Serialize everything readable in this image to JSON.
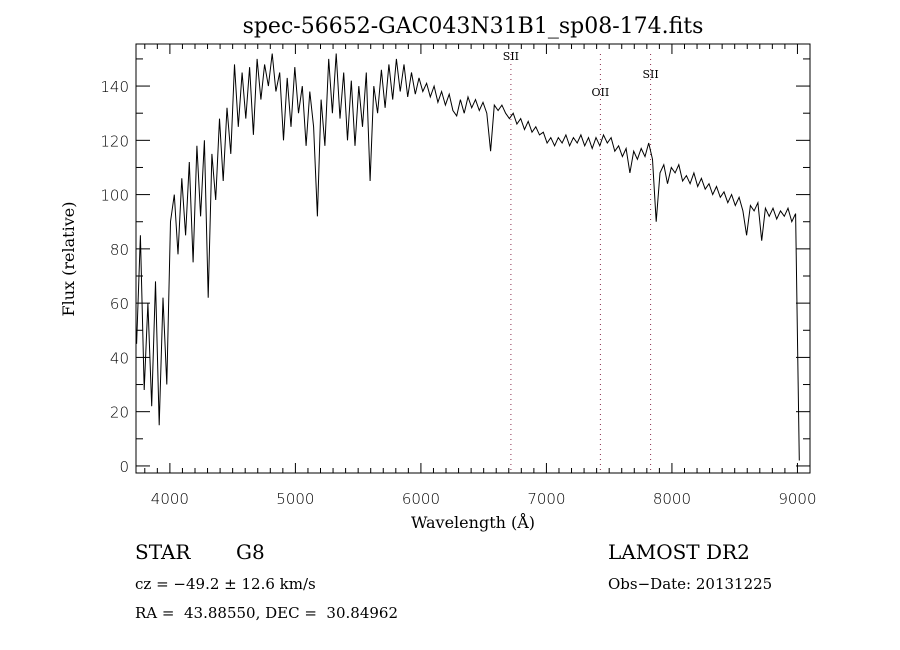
{
  "chart_data": {
    "type": "line",
    "title": "spec-56652-GAC043N31B1_sp08-174.fits",
    "xlabel": "Wavelength (Å)",
    "ylabel": "Flux (relative)",
    "xlim": [
      3730,
      9100
    ],
    "ylim": [
      -2.6,
      155.5
    ],
    "x_ticks": [
      4000,
      5000,
      6000,
      7000,
      8000,
      9000
    ],
    "x_tick_labels": [
      "4000",
      "5000",
      "6000",
      "7000",
      "8000",
      "9000"
    ],
    "y_ticks": [
      0,
      20,
      40,
      60,
      80,
      100,
      120,
      140
    ],
    "y_tick_labels": [
      "0",
      "20",
      "40",
      "60",
      "80",
      "100",
      "120",
      "140"
    ],
    "x_minor_step": 100,
    "y_minor_step": 10,
    "grid": false,
    "series": [
      {
        "name": "spectrum",
        "x_start": 3735,
        "x_step": 30,
        "flux": [
          45,
          85,
          28,
          60,
          22,
          68,
          15,
          62,
          30,
          90,
          100,
          78,
          106,
          85,
          112,
          75,
          118,
          92,
          120,
          62,
          115,
          98,
          128,
          105,
          132,
          115,
          148,
          125,
          145,
          128,
          147,
          122,
          150,
          135,
          148,
          140,
          152,
          138,
          145,
          120,
          143,
          125,
          147,
          130,
          140,
          118,
          138,
          125,
          92,
          135,
          118,
          150,
          130,
          152,
          128,
          145,
          120,
          142,
          118,
          140,
          125,
          145,
          105,
          140,
          130,
          146,
          132,
          148,
          135,
          150,
          138,
          148,
          136,
          145,
          137,
          143,
          138,
          141,
          136,
          140,
          134,
          138,
          133,
          137,
          131,
          129,
          135,
          130,
          136,
          132,
          135,
          131,
          134,
          130,
          116,
          133,
          131,
          133,
          130,
          128,
          130,
          126,
          128,
          124,
          127,
          123,
          125,
          122,
          123,
          119,
          121,
          118,
          121,
          119,
          122,
          118,
          121,
          119,
          122,
          118,
          121,
          117,
          121,
          118,
          122,
          119,
          121,
          116,
          118,
          114,
          117,
          108,
          116,
          113,
          117,
          114,
          119,
          113,
          90,
          108,
          111,
          104,
          110,
          108,
          111,
          105,
          107,
          104,
          108,
          103,
          106,
          102,
          104,
          100,
          103,
          99,
          101,
          97,
          100,
          96,
          99,
          94,
          85,
          96,
          94,
          97,
          83,
          95,
          92,
          95,
          91,
          94,
          92,
          95,
          90,
          93,
          2
        ]
      }
    ],
    "line_markers": [
      {
        "wavelength": 6717,
        "label": "SII"
      },
      {
        "wavelength": 7430,
        "label": "OII"
      },
      {
        "wavelength": 7830,
        "label": "SII"
      }
    ]
  },
  "info": {
    "class": "STAR",
    "subclass": "G8",
    "survey": "LAMOST DR2",
    "cz": "cz = −49.2 ± 12.6 km/s",
    "obs_date": "Obs−Date: 20131225",
    "coords": "RA =  43.88550, DEC =  30.84962"
  }
}
